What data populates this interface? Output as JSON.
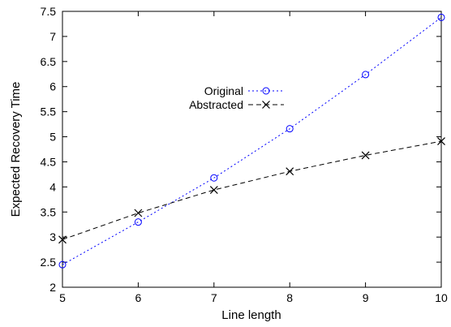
{
  "chart_data": {
    "type": "line",
    "title": "",
    "xlabel": "Line length",
    "ylabel": "Expected Recovery Time",
    "xlim": [
      5,
      10
    ],
    "ylim": [
      2,
      7.5
    ],
    "xticks": [
      "5",
      "6",
      "7",
      "8",
      "9",
      "10"
    ],
    "yticks": [
      "2",
      "2.5",
      "3",
      "3.5",
      "4",
      "4.5",
      "5",
      "5.5",
      "6",
      "6.5",
      "7",
      "7.5"
    ],
    "grid": false,
    "legend_position": "center",
    "x": [
      5,
      6,
      7,
      8,
      9,
      10
    ],
    "series": [
      {
        "name": "Original",
        "marker": "circle-icon",
        "line_style": "dotted",
        "color": "#0000ff",
        "values": [
          2.45,
          3.3,
          4.18,
          5.16,
          6.24,
          7.38
        ]
      },
      {
        "name": "Abstracted",
        "marker": "cross-icon",
        "line_style": "dashed",
        "color": "#000000",
        "values": [
          2.95,
          3.48,
          3.94,
          4.31,
          4.63,
          4.91
        ]
      }
    ]
  }
}
